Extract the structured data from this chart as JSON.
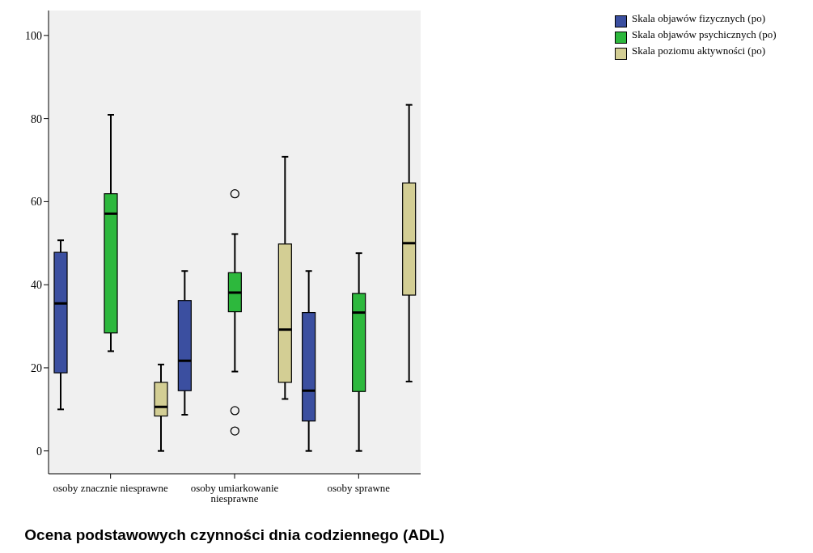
{
  "chart_data": {
    "type": "box",
    "xlabel": "Ocena podstawowych czynności dnia codziennego (ADL)",
    "categories": [
      "osoby znacznie niesprawne",
      "osoby umiarkowanie niesprawne",
      "osoby sprawne"
    ],
    "series": [
      {
        "name": "Skala objawów fizycznych (po)",
        "color": "#3b4fa0",
        "boxes": [
          {
            "low": 10,
            "q1": 18.8,
            "median": 35.5,
            "q3": 47.8,
            "high": 50.7
          },
          {
            "low": 8.7,
            "q1": 14.5,
            "median": 21.7,
            "q3": 36.2,
            "high": 43.3
          },
          {
            "low": 0,
            "q1": 7.2,
            "median": 14.5,
            "q3": 33.3,
            "high": 43.3
          }
        ]
      },
      {
        "name": "Skala objawów psychicznych (po)",
        "color": "#2db83d",
        "boxes": [
          {
            "low": 24,
            "q1": 28.4,
            "median": 57.1,
            "q3": 61.9,
            "high": 80.9
          },
          {
            "low": 19.1,
            "q1": 33.5,
            "median": 38.1,
            "q3": 42.9,
            "high": 52.2,
            "outliers": [
              61.9,
              9.7,
              4.8
            ]
          },
          {
            "low": 0,
            "q1": 14.3,
            "median": 33.3,
            "q3": 37.9,
            "high": 47.6
          }
        ]
      },
      {
        "name": "Skala poziomu aktywności (po)",
        "color": "#d3ce94",
        "boxes": [
          {
            "low": 0,
            "q1": 8.4,
            "median": 10.6,
            "q3": 16.5,
            "high": 20.8
          },
          {
            "low": 12.5,
            "q1": 16.5,
            "median": 29.2,
            "q3": 49.8,
            "high": 70.8
          },
          {
            "low": 16.7,
            "q1": 37.5,
            "median": 50,
            "q3": 64.5,
            "high": 83.3
          }
        ]
      }
    ],
    "ylim": [
      -5.5,
      106
    ],
    "yticks": [
      0,
      20,
      40,
      60,
      80,
      100
    ],
    "grid": false,
    "legend": "top right"
  }
}
